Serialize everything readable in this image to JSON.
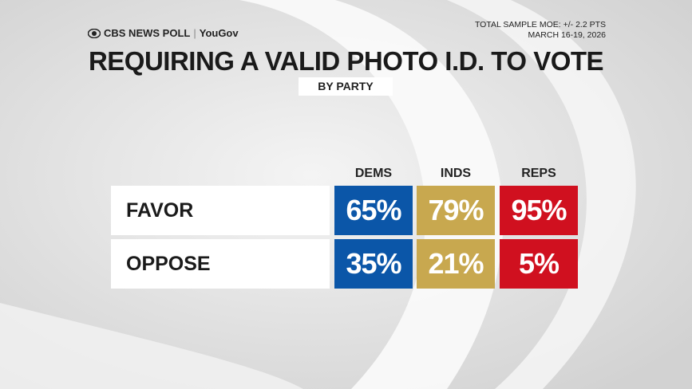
{
  "header": {
    "brand": "CBS NEWS POLL",
    "partner": "YouGov",
    "moe": "TOTAL SAMPLE MOE: +/- 2.2 PTS",
    "dates": "MARCH 16-19, 2026"
  },
  "title": "REQUIRING A VALID PHOTO I.D. TO VOTE",
  "subtitle": "BY PARTY",
  "table": {
    "columns": [
      "DEMS",
      "INDS",
      "REPS"
    ],
    "column_colors": [
      "#0b56a8",
      "#c8a84f",
      "#d0101f"
    ],
    "rows": [
      {
        "label": "FAVOR",
        "cells": [
          "65%",
          "79%",
          "95%"
        ]
      },
      {
        "label": "OPPOSE",
        "cells": [
          "35%",
          "21%",
          "5%"
        ]
      }
    ]
  }
}
